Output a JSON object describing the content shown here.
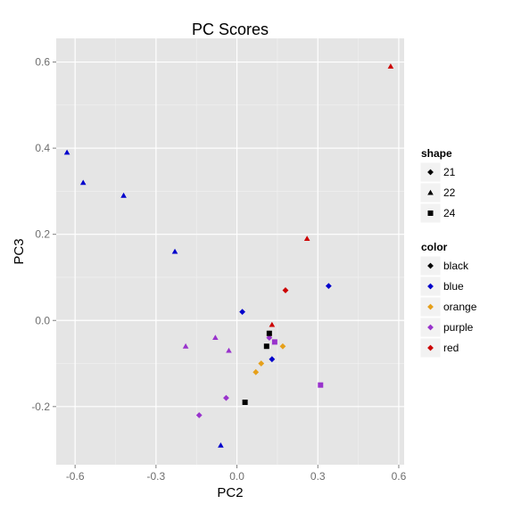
{
  "chart_data": {
    "type": "scatter",
    "title": "PC Scores",
    "xlabel": "PC2",
    "ylabel": "PC3",
    "xlim": [
      -0.67,
      0.62
    ],
    "ylim": [
      -0.335,
      0.655
    ],
    "x_ticks": [
      -0.6,
      -0.3,
      0.0,
      0.3,
      0.6
    ],
    "x_tick_labels": [
      "-0.6",
      "-0.3",
      "0.0",
      "0.3",
      "0.6"
    ],
    "y_ticks": [
      -0.2,
      0.0,
      0.2,
      0.4,
      0.6
    ],
    "y_tick_labels": [
      "-0.2",
      "0.0",
      "0.2",
      "0.4",
      "0.6"
    ],
    "grid": true,
    "legend_position": "right",
    "colors": {
      "black": "#000000",
      "blue": "#0000cc",
      "orange": "#e6a01a",
      "purple": "#9933cc",
      "red": "#cc0000"
    },
    "legends": [
      {
        "title": "shape",
        "entries": [
          {
            "label": "21",
            "shape": "21"
          },
          {
            "label": "22",
            "shape": "22"
          },
          {
            "label": "24",
            "shape": "24"
          }
        ]
      },
      {
        "title": "color",
        "entries": [
          {
            "label": "black",
            "color": "black"
          },
          {
            "label": "blue",
            "color": "blue"
          },
          {
            "label": "orange",
            "color": "orange"
          },
          {
            "label": "purple",
            "color": "purple"
          },
          {
            "label": "red",
            "color": "red"
          }
        ]
      }
    ],
    "points": [
      {
        "x": 0.57,
        "y": 0.59,
        "shape": "22",
        "color": "red"
      },
      {
        "x": 0.26,
        "y": 0.19,
        "shape": "22",
        "color": "red"
      },
      {
        "x": 0.18,
        "y": 0.07,
        "shape": "21",
        "color": "red"
      },
      {
        "x": 0.13,
        "y": -0.01,
        "shape": "22",
        "color": "red"
      },
      {
        "x": 0.12,
        "y": -0.03,
        "shape": "22",
        "color": "red"
      },
      {
        "x": -0.63,
        "y": 0.39,
        "shape": "22",
        "color": "blue"
      },
      {
        "x": -0.57,
        "y": 0.32,
        "shape": "22",
        "color": "blue"
      },
      {
        "x": -0.42,
        "y": 0.29,
        "shape": "22",
        "color": "blue"
      },
      {
        "x": -0.23,
        "y": 0.16,
        "shape": "22",
        "color": "blue"
      },
      {
        "x": 0.34,
        "y": 0.08,
        "shape": "21",
        "color": "blue"
      },
      {
        "x": 0.02,
        "y": 0.02,
        "shape": "21",
        "color": "blue"
      },
      {
        "x": 0.13,
        "y": -0.09,
        "shape": "21",
        "color": "blue"
      },
      {
        "x": -0.06,
        "y": -0.29,
        "shape": "22",
        "color": "blue"
      },
      {
        "x": 0.17,
        "y": -0.06,
        "shape": "21",
        "color": "orange"
      },
      {
        "x": 0.09,
        "y": -0.1,
        "shape": "21",
        "color": "orange"
      },
      {
        "x": 0.07,
        "y": -0.12,
        "shape": "21",
        "color": "orange"
      },
      {
        "x": -0.19,
        "y": -0.06,
        "shape": "22",
        "color": "purple"
      },
      {
        "x": -0.08,
        "y": -0.04,
        "shape": "22",
        "color": "purple"
      },
      {
        "x": -0.03,
        "y": -0.07,
        "shape": "22",
        "color": "purple"
      },
      {
        "x": 0.12,
        "y": -0.04,
        "shape": "21",
        "color": "purple"
      },
      {
        "x": 0.14,
        "y": -0.05,
        "shape": "24",
        "color": "purple"
      },
      {
        "x": 0.31,
        "y": -0.15,
        "shape": "24",
        "color": "purple"
      },
      {
        "x": -0.04,
        "y": -0.18,
        "shape": "21",
        "color": "purple"
      },
      {
        "x": -0.14,
        "y": -0.22,
        "shape": "21",
        "color": "purple"
      },
      {
        "x": 0.12,
        "y": -0.03,
        "shape": "24",
        "color": "black"
      },
      {
        "x": 0.11,
        "y": -0.06,
        "shape": "24",
        "color": "black"
      },
      {
        "x": 0.03,
        "y": -0.19,
        "shape": "24",
        "color": "black"
      }
    ]
  }
}
